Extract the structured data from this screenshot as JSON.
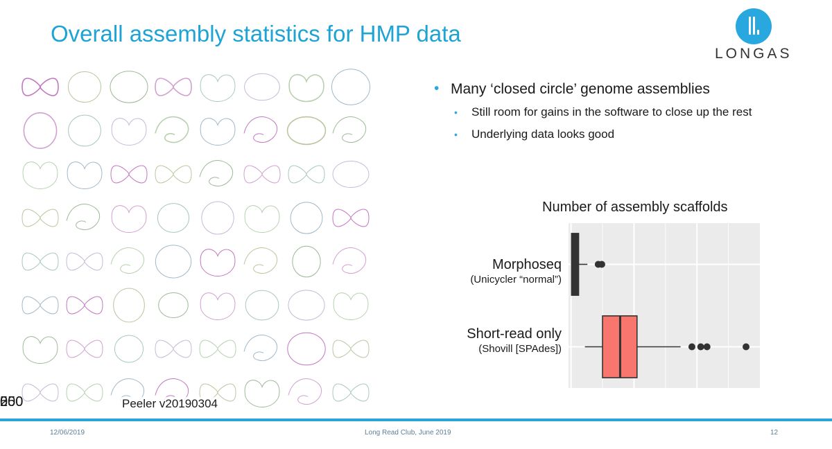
{
  "slide": {
    "title": "Overall assembly statistics for HMP data",
    "logo_text": "LONGAS",
    "bullets": [
      {
        "text": "Many ‘closed circle’ genome assemblies",
        "level": 1
      },
      {
        "text": "Still room for gains in the software to close up the rest",
        "level": 2
      },
      {
        "text": "Underlying data looks good",
        "level": 2
      }
    ],
    "gallery_caption": "Peeler v20190304",
    "footer": {
      "date": "12/06/2019",
      "event": "Long Read Club, June 2019",
      "page_number": "12"
    },
    "colors": {
      "accent": "#1ea3d5",
      "box_fill": "#f8766d",
      "panel_bg": "#ebebeb"
    }
  },
  "chart_data": {
    "type": "boxplot",
    "title": "Number of assembly scaffolds",
    "orientation": "horizontal",
    "xlim": [
      -10,
      750
    ],
    "xticks": [
      0,
      250,
      500
    ],
    "categories": [
      {
        "name": "Morphoseq",
        "subtitle": "(Unicycler “normal”)"
      },
      {
        "name": "Short-read only",
        "subtitle": "(Shovill [SPAdes])"
      }
    ],
    "boxes": [
      {
        "min": 1,
        "q1": 2,
        "median": 8,
        "q3": 30,
        "max": 65,
        "outliers": [
          108,
          122
        ]
      },
      {
        "min": 55,
        "q1": 125,
        "median": 195,
        "q3": 262,
        "max": 435,
        "outliers": [
          480,
          515,
          540,
          695
        ]
      }
    ]
  }
}
